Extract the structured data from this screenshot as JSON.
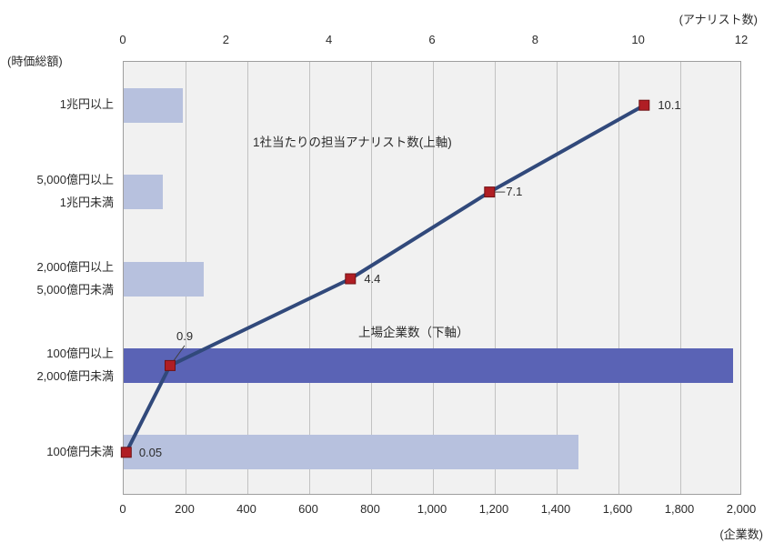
{
  "chart_data": {
    "type": "bar",
    "subtype": "horizontal-bar-with-line-dual-axis",
    "title": "",
    "left_axis_unit": "(時価総額)",
    "categories": [
      "1兆円以上",
      "5,000億円以上\n1兆円未満",
      "2,000億円以上\n5,000億円未満",
      "100億円以上\n2,000億円未満",
      "100億円未満"
    ],
    "series": [
      {
        "name": "上場企業数（下軸）",
        "type": "bar",
        "axis": "bottom",
        "values": [
          190,
          127,
          260,
          1970,
          1470
        ],
        "highlight_index": 3
      },
      {
        "name": "1社当たりの担当アナリスト数(上軸)",
        "type": "line",
        "axis": "top",
        "values": [
          10.1,
          7.1,
          4.4,
          0.9,
          0.05
        ],
        "point_labels": [
          "10.1",
          "7.1",
          "4.4",
          "0.9",
          "0.05"
        ]
      }
    ],
    "top_axis": {
      "unit": "(アナリスト数)",
      "min": 0,
      "max": 12,
      "step": 2,
      "ticks": [
        "0",
        "2",
        "4",
        "6",
        "8",
        "10",
        "12"
      ]
    },
    "bottom_axis": {
      "unit": "(企業数)",
      "min": 0,
      "max": 2000,
      "step": 200,
      "ticks": [
        "0",
        "200",
        "400",
        "600",
        "800",
        "1,000",
        "1,200",
        "1,400",
        "1,600",
        "1,800",
        "2,000"
      ]
    },
    "grid": "vertical-only",
    "legend_position": "none (inline annotations)",
    "colors": {
      "plot_bg": "#f1f1f1",
      "grid": "#c2c2c2",
      "border": "#9e9e9e",
      "bar_light": "#b7c1de",
      "bar_dark": "#5a63b5",
      "line": "#31497b",
      "marker": "#b01e24",
      "marker_border": "#701114",
      "text": "#2b2b2b"
    }
  }
}
